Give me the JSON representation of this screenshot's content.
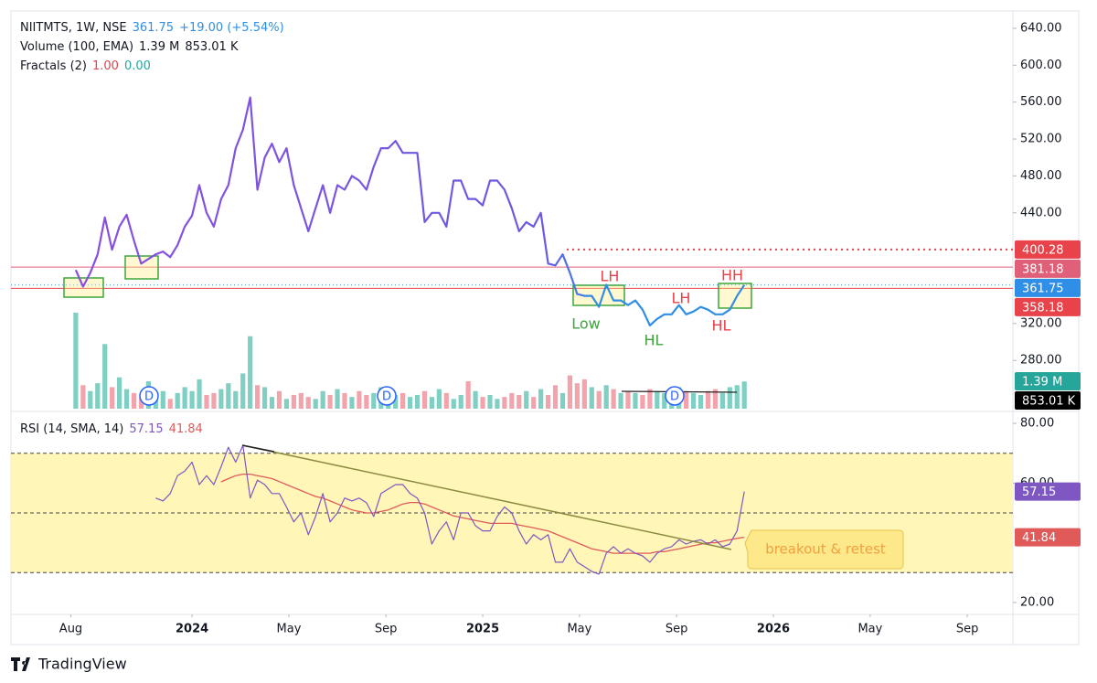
{
  "chart_data": {
    "type": "line",
    "change": "+19.00 (+5.54%)",
    "x": [
      2023.6,
      2023.625,
      2023.65,
      2023.675,
      2023.7,
      2023.725,
      2023.75,
      2023.775,
      2023.8,
      2023.825,
      2023.85,
      2023.875,
      2023.9,
      2023.925,
      2023.95,
      2023.975,
      2024,
      2024.025,
      2024.05,
      2024.075,
      2024.1,
      2024.125,
      2024.15,
      2024.175,
      2024.2,
      2024.225,
      2024.25,
      2024.275,
      2024.3,
      2024.325,
      2024.35,
      2024.375,
      2024.4,
      2024.425,
      2024.45,
      2024.475,
      2024.5,
      2024.525,
      2024.55,
      2024.575,
      2024.6,
      2024.625,
      2024.65,
      2024.675,
      2024.7,
      2024.725,
      2024.75,
      2024.775,
      2024.8,
      2024.825,
      2024.85,
      2024.875,
      2024.9,
      2024.925,
      2024.95,
      2024.975,
      2025,
      2025.025,
      2025.05,
      2025.075,
      2025.1,
      2025.125,
      2025.15,
      2025.175,
      2025.2,
      2025.225,
      2025.25,
      2025.275,
      2025.3,
      2025.325,
      2025.35,
      2025.375,
      2025.4,
      2025.425,
      2025.45,
      2025.475,
      2025.5,
      2025.525,
      2025.55,
      2025.575,
      2025.6,
      2025.625,
      2025.65,
      2025.675,
      2025.7,
      2025.725,
      2025.75,
      2025.775,
      2025.8,
      2025.825,
      2025.85,
      2025.875,
      2025.9
    ],
    "xlim": [
      2023.377,
      2026.824
    ],
    "xticks": [
      {
        "value": 2023.583,
        "label": "Aug"
      },
      2024,
      {
        "value": 2024.333,
        "label": "May"
      },
      {
        "value": 2024.667,
        "label": "Sep"
      },
      2025,
      {
        "value": 2025.333,
        "label": "May"
      },
      {
        "value": 2025.667,
        "label": "Sep"
      },
      2026,
      {
        "value": 2026.333,
        "label": "May"
      },
      {
        "value": 2026.667,
        "label": "Sep"
      }
    ],
    "ylim": [
      224.7,
      658.8
    ],
    "yticks": [
      {
        "value": 640,
        "label": "640.00"
      },
      {
        "value": 600,
        "label": "600.00"
      },
      {
        "value": 560,
        "label": "560.00"
      },
      {
        "value": 520,
        "label": "520.00"
      },
      {
        "value": 480,
        "label": "480.00"
      },
      {
        "value": 440,
        "label": "440.00"
      },
      {
        "value": 320,
        "label": "320.00"
      },
      {
        "value": 280,
        "label": "280.00"
      }
    ],
    "series": [
      {
        "name": "NIITMTS, 1W, NSE",
        "color": "#2f8ee5",
        "values": [
          378,
          360,
          375,
          395,
          435,
          400,
          425,
          438,
          410,
          385,
          390,
          395,
          398,
          392,
          405,
          425,
          437,
          470,
          440,
          425,
          455,
          470,
          510,
          530,
          565,
          465,
          500,
          515,
          495,
          510,
          470,
          445,
          420,
          445,
          470,
          440,
          470,
          465,
          480,
          475,
          465,
          490,
          510,
          510,
          518,
          505,
          505,
          505,
          430,
          440,
          440,
          425,
          475,
          475,
          455,
          455,
          448,
          475,
          475,
          465,
          445,
          420,
          430,
          425,
          440,
          385,
          383,
          395,
          375,
          352,
          350,
          350,
          338,
          362,
          345,
          345,
          340,
          345,
          335,
          318,
          325,
          330,
          330,
          340,
          330,
          333,
          338,
          335,
          330,
          330,
          335,
          350,
          361.75
        ]
      }
    ],
    "levels": [
      {
        "value": 400.28,
        "color": "#e8424a",
        "style": "dotted"
      },
      {
        "value": 381.18,
        "color": "#e0607a",
        "style": "solid"
      },
      {
        "value": 358.18,
        "color": "#e8424a",
        "style": "solid"
      }
    ],
    "annotations": [
      "LH",
      "Low",
      "HL",
      "LH",
      "HH",
      "HL",
      "breakout & retest"
    ],
    "dividends": [
      "D",
      "D",
      "D"
    ],
    "fractals": {
      "name": "Fractals (2)",
      "up": "1.00",
      "down": "0.00"
    },
    "volume": {
      "name": "Volume (100, EMA)",
      "last_label": "1.39 M",
      "ema_label": "853.01 K",
      "up_color": "#80cfc3",
      "down_color": "#f3a3ab",
      "values": [
        4.9,
        1.2,
        0.9,
        1.3,
        3.3,
        1.1,
        1.6,
        1.0,
        0.8,
        0.6,
        1.4,
        0.7,
        0.9,
        0.5,
        0.8,
        1.1,
        0.9,
        1.5,
        0.7,
        0.8,
        1.0,
        1.3,
        0.9,
        1.8,
        3.7,
        1.2,
        1.1,
        0.6,
        0.9,
        0.5,
        0.7,
        0.8,
        0.6,
        0.5,
        0.9,
        0.7,
        1.0,
        0.8,
        0.6,
        0.9,
        0.7,
        0.8,
        1.1,
        0.9,
        0.7,
        0.8,
        0.6,
        0.7,
        0.9,
        0.6,
        1.0,
        0.8,
        0.5,
        0.7,
        1.4,
        0.9,
        0.6,
        0.7,
        0.5,
        0.6,
        0.8,
        0.7,
        0.9,
        0.6,
        1.0,
        0.7,
        1.2,
        0.8,
        1.7,
        1.3,
        1.5,
        1.1,
        0.9,
        1.2,
        1.0,
        0.8,
        0.9,
        0.8,
        0.7,
        1.0,
        0.9,
        0.8,
        1.0,
        1.1,
        0.9,
        0.8,
        0.7,
        0.9,
        1.0,
        0.8,
        1.1,
        1.2,
        1.39
      ]
    },
    "rsi": {
      "name": "RSI (14, SMA, 14)",
      "ylim": [
        16,
        84
      ],
      "yticks": [
        {
          "value": 80,
          "label": "80.00"
        },
        {
          "value": 60,
          "label": "60.00"
        },
        {
          "value": 20,
          "label": "20.00"
        }
      ],
      "bands": [
        70,
        50,
        30
      ],
      "band_color": "#fff6b8",
      "series": [
        {
          "color": "#7e57c2",
          "values": [
            null,
            null,
            null,
            null,
            null,
            null,
            null,
            null,
            null,
            null,
            null,
            55,
            54,
            56.5,
            62.5,
            64,
            67,
            59.5,
            62.5,
            59.5,
            65.5,
            72,
            67,
            72.6,
            55,
            61,
            59.5,
            56.5,
            56.5,
            52,
            47,
            50,
            42.7,
            48.8,
            56.5,
            47,
            50,
            55,
            54,
            55,
            53.4,
            48.8,
            56.5,
            58,
            59.5,
            59.5,
            56.5,
            55,
            50,
            39.6,
            44,
            47,
            41,
            50,
            50,
            45.7,
            44,
            44,
            48.8,
            52,
            50,
            44,
            39.6,
            42.7,
            41,
            42.7,
            33.5,
            33.5,
            38,
            33.5,
            32,
            30.4,
            29.5,
            36.5,
            38.7,
            36.5,
            38,
            36.5,
            35.6,
            33.5,
            36.5,
            38,
            38.7,
            41,
            39.6,
            40.5,
            41,
            39.6,
            41,
            38.7,
            39.6,
            44,
            57.15
          ]
        },
        {
          "color": "#e05a5a",
          "values": [
            null,
            null,
            null,
            null,
            null,
            null,
            null,
            null,
            null,
            null,
            null,
            null,
            null,
            null,
            null,
            null,
            null,
            null,
            null,
            null,
            60.4,
            61.5,
            62.5,
            63,
            63,
            62.5,
            62,
            61.5,
            60.5,
            59.5,
            58.5,
            57.5,
            56.5,
            55.5,
            55,
            54,
            53,
            52,
            51,
            50.5,
            50,
            50,
            50.5,
            51,
            52,
            53,
            53.5,
            53.5,
            53,
            52,
            51,
            50,
            49,
            48.5,
            48,
            47.5,
            47,
            46.5,
            46.5,
            46.5,
            46.5,
            46,
            45.5,
            45,
            44.5,
            44,
            43,
            42,
            41,
            40,
            39,
            38,
            37.5,
            37,
            36.5,
            36.5,
            36.5,
            36.5,
            36.5,
            36.5,
            37,
            37,
            37.5,
            38,
            38.5,
            39,
            39.5,
            40,
            40,
            40.5,
            41,
            41.5,
            41.84
          ]
        }
      ]
    },
    "brand": "TradingView"
  }
}
